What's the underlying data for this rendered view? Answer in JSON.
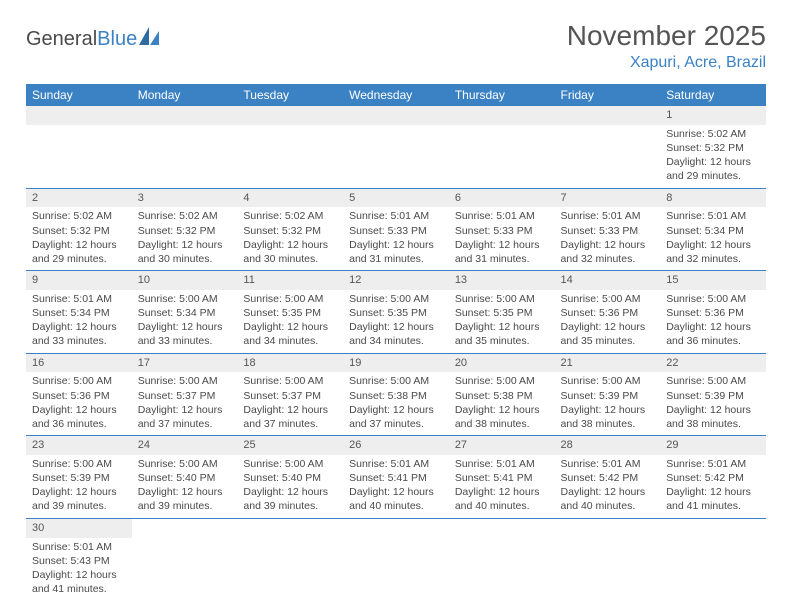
{
  "logo": {
    "text1": "General",
    "text2": "Blue"
  },
  "title": "November 2025",
  "location": "Xapuri, Acre, Brazil",
  "weekdays": [
    "Sunday",
    "Monday",
    "Tuesday",
    "Wednesday",
    "Thursday",
    "Friday",
    "Saturday"
  ],
  "colors": {
    "header_bg": "#3b82c4",
    "header_text": "#ffffff",
    "daynum_bg": "#eeeeee",
    "cell_border": "#3b82c4",
    "body_text": "#4a4a4a",
    "title_text": "#555555",
    "location_text": "#3b82c4"
  },
  "typography": {
    "title_fontsize": 28,
    "location_fontsize": 16,
    "weekday_fontsize": 12,
    "cell_fontsize": 10.5,
    "daynum_fontsize": 11
  },
  "layout": {
    "columns": 7,
    "rows": 6,
    "first_day_column": 6
  },
  "labels": {
    "sunrise": "Sunrise:",
    "sunset": "Sunset:",
    "daylight": "Daylight:"
  },
  "days": [
    {
      "n": 1,
      "sr": "5:02 AM",
      "ss": "5:32 PM",
      "dl": "12 hours and 29 minutes."
    },
    {
      "n": 2,
      "sr": "5:02 AM",
      "ss": "5:32 PM",
      "dl": "12 hours and 29 minutes."
    },
    {
      "n": 3,
      "sr": "5:02 AM",
      "ss": "5:32 PM",
      "dl": "12 hours and 30 minutes."
    },
    {
      "n": 4,
      "sr": "5:02 AM",
      "ss": "5:32 PM",
      "dl": "12 hours and 30 minutes."
    },
    {
      "n": 5,
      "sr": "5:01 AM",
      "ss": "5:33 PM",
      "dl": "12 hours and 31 minutes."
    },
    {
      "n": 6,
      "sr": "5:01 AM",
      "ss": "5:33 PM",
      "dl": "12 hours and 31 minutes."
    },
    {
      "n": 7,
      "sr": "5:01 AM",
      "ss": "5:33 PM",
      "dl": "12 hours and 32 minutes."
    },
    {
      "n": 8,
      "sr": "5:01 AM",
      "ss": "5:34 PM",
      "dl": "12 hours and 32 minutes."
    },
    {
      "n": 9,
      "sr": "5:01 AM",
      "ss": "5:34 PM",
      "dl": "12 hours and 33 minutes."
    },
    {
      "n": 10,
      "sr": "5:00 AM",
      "ss": "5:34 PM",
      "dl": "12 hours and 33 minutes."
    },
    {
      "n": 11,
      "sr": "5:00 AM",
      "ss": "5:35 PM",
      "dl": "12 hours and 34 minutes."
    },
    {
      "n": 12,
      "sr": "5:00 AM",
      "ss": "5:35 PM",
      "dl": "12 hours and 34 minutes."
    },
    {
      "n": 13,
      "sr": "5:00 AM",
      "ss": "5:35 PM",
      "dl": "12 hours and 35 minutes."
    },
    {
      "n": 14,
      "sr": "5:00 AM",
      "ss": "5:36 PM",
      "dl": "12 hours and 35 minutes."
    },
    {
      "n": 15,
      "sr": "5:00 AM",
      "ss": "5:36 PM",
      "dl": "12 hours and 36 minutes."
    },
    {
      "n": 16,
      "sr": "5:00 AM",
      "ss": "5:36 PM",
      "dl": "12 hours and 36 minutes."
    },
    {
      "n": 17,
      "sr": "5:00 AM",
      "ss": "5:37 PM",
      "dl": "12 hours and 37 minutes."
    },
    {
      "n": 18,
      "sr": "5:00 AM",
      "ss": "5:37 PM",
      "dl": "12 hours and 37 minutes."
    },
    {
      "n": 19,
      "sr": "5:00 AM",
      "ss": "5:38 PM",
      "dl": "12 hours and 37 minutes."
    },
    {
      "n": 20,
      "sr": "5:00 AM",
      "ss": "5:38 PM",
      "dl": "12 hours and 38 minutes."
    },
    {
      "n": 21,
      "sr": "5:00 AM",
      "ss": "5:39 PM",
      "dl": "12 hours and 38 minutes."
    },
    {
      "n": 22,
      "sr": "5:00 AM",
      "ss": "5:39 PM",
      "dl": "12 hours and 38 minutes."
    },
    {
      "n": 23,
      "sr": "5:00 AM",
      "ss": "5:39 PM",
      "dl": "12 hours and 39 minutes."
    },
    {
      "n": 24,
      "sr": "5:00 AM",
      "ss": "5:40 PM",
      "dl": "12 hours and 39 minutes."
    },
    {
      "n": 25,
      "sr": "5:00 AM",
      "ss": "5:40 PM",
      "dl": "12 hours and 39 minutes."
    },
    {
      "n": 26,
      "sr": "5:01 AM",
      "ss": "5:41 PM",
      "dl": "12 hours and 40 minutes."
    },
    {
      "n": 27,
      "sr": "5:01 AM",
      "ss": "5:41 PM",
      "dl": "12 hours and 40 minutes."
    },
    {
      "n": 28,
      "sr": "5:01 AM",
      "ss": "5:42 PM",
      "dl": "12 hours and 40 minutes."
    },
    {
      "n": 29,
      "sr": "5:01 AM",
      "ss": "5:42 PM",
      "dl": "12 hours and 41 minutes."
    },
    {
      "n": 30,
      "sr": "5:01 AM",
      "ss": "5:43 PM",
      "dl": "12 hours and 41 minutes."
    }
  ]
}
